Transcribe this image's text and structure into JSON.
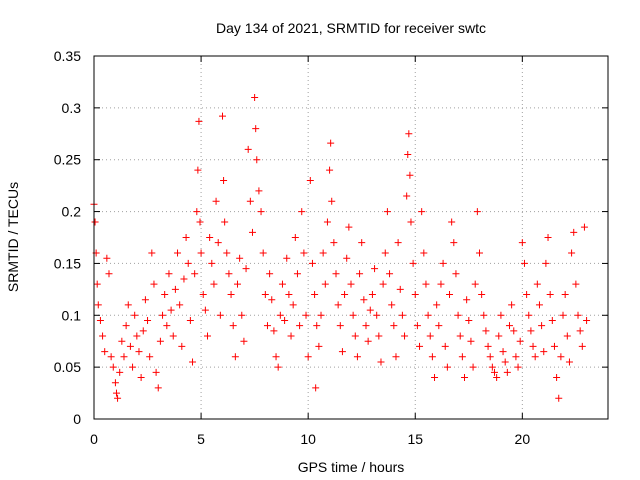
{
  "chart_data": {
    "type": "scatter",
    "title": "Day 134 of 2021, SRMTID for receiver swtc",
    "xlabel": "GPS time / hours",
    "ylabel": "SRMTID / TECUs",
    "xlim": [
      0,
      24
    ],
    "ylim": [
      0,
      0.35
    ],
    "x_ticks": [
      0,
      5,
      10,
      15,
      20
    ],
    "x_tick_labels": [
      "0",
      "5",
      "10",
      "15",
      "20"
    ],
    "y_ticks": [
      0,
      0.05,
      0.1,
      0.15,
      0.2,
      0.25,
      0.3,
      0.35
    ],
    "y_tick_labels": [
      "0",
      "0.05",
      "0.1",
      "0.15",
      "0.2",
      "0.25",
      "0.3",
      "0.35"
    ],
    "grid": true,
    "marker": "+",
    "color": "#ff0000",
    "series": [
      {
        "name": "SRMTID",
        "points": [
          [
            0.0,
            0.207
          ],
          [
            0.05,
            0.19
          ],
          [
            0.1,
            0.16
          ],
          [
            0.15,
            0.13
          ],
          [
            0.2,
            0.11
          ],
          [
            0.3,
            0.095
          ],
          [
            0.4,
            0.08
          ],
          [
            0.5,
            0.065
          ],
          [
            0.6,
            0.155
          ],
          [
            0.7,
            0.14
          ],
          [
            0.8,
            0.06
          ],
          [
            0.9,
            0.05
          ],
          [
            1.0,
            0.035
          ],
          [
            1.05,
            0.025
          ],
          [
            1.1,
            0.02
          ],
          [
            1.2,
            0.045
          ],
          [
            1.3,
            0.075
          ],
          [
            1.4,
            0.06
          ],
          [
            1.5,
            0.09
          ],
          [
            1.6,
            0.11
          ],
          [
            1.7,
            0.07
          ],
          [
            1.8,
            0.05
          ],
          [
            1.9,
            0.1
          ],
          [
            2.0,
            0.08
          ],
          [
            2.1,
            0.065
          ],
          [
            2.2,
            0.04
          ],
          [
            2.3,
            0.085
          ],
          [
            2.4,
            0.115
          ],
          [
            2.5,
            0.095
          ],
          [
            2.6,
            0.06
          ],
          [
            2.7,
            0.16
          ],
          [
            2.8,
            0.13
          ],
          [
            2.9,
            0.045
          ],
          [
            3.0,
            0.03
          ],
          [
            3.1,
            0.075
          ],
          [
            3.2,
            0.1
          ],
          [
            3.3,
            0.12
          ],
          [
            3.4,
            0.09
          ],
          [
            3.5,
            0.14
          ],
          [
            3.6,
            0.105
          ],
          [
            3.7,
            0.08
          ],
          [
            3.8,
            0.125
          ],
          [
            3.9,
            0.16
          ],
          [
            4.0,
            0.11
          ],
          [
            4.1,
            0.07
          ],
          [
            4.2,
            0.135
          ],
          [
            4.3,
            0.175
          ],
          [
            4.4,
            0.15
          ],
          [
            4.5,
            0.095
          ],
          [
            4.6,
            0.055
          ],
          [
            4.7,
            0.14
          ],
          [
            4.8,
            0.2
          ],
          [
            4.85,
            0.24
          ],
          [
            4.9,
            0.287
          ],
          [
            4.95,
            0.19
          ],
          [
            5.0,
            0.16
          ],
          [
            5.1,
            0.12
          ],
          [
            5.2,
            0.105
          ],
          [
            5.3,
            0.08
          ],
          [
            5.4,
            0.175
          ],
          [
            5.5,
            0.15
          ],
          [
            5.6,
            0.13
          ],
          [
            5.7,
            0.21
          ],
          [
            5.8,
            0.17
          ],
          [
            5.9,
            0.1
          ],
          [
            6.0,
            0.292
          ],
          [
            6.05,
            0.23
          ],
          [
            6.1,
            0.19
          ],
          [
            6.2,
            0.16
          ],
          [
            6.3,
            0.14
          ],
          [
            6.4,
            0.12
          ],
          [
            6.5,
            0.09
          ],
          [
            6.6,
            0.06
          ],
          [
            6.7,
            0.13
          ],
          [
            6.8,
            0.155
          ],
          [
            6.9,
            0.1
          ],
          [
            7.0,
            0.075
          ],
          [
            7.1,
            0.145
          ],
          [
            7.2,
            0.26
          ],
          [
            7.3,
            0.21
          ],
          [
            7.4,
            0.18
          ],
          [
            7.5,
            0.31
          ],
          [
            7.55,
            0.28
          ],
          [
            7.6,
            0.25
          ],
          [
            7.7,
            0.22
          ],
          [
            7.8,
            0.2
          ],
          [
            7.9,
            0.16
          ],
          [
            8.0,
            0.12
          ],
          [
            8.1,
            0.09
          ],
          [
            8.2,
            0.14
          ],
          [
            8.3,
            0.115
          ],
          [
            8.4,
            0.085
          ],
          [
            8.5,
            0.06
          ],
          [
            8.6,
            0.05
          ],
          [
            8.7,
            0.1
          ],
          [
            8.8,
            0.13
          ],
          [
            8.9,
            0.095
          ],
          [
            9.0,
            0.155
          ],
          [
            9.1,
            0.12
          ],
          [
            9.2,
            0.08
          ],
          [
            9.3,
            0.11
          ],
          [
            9.4,
            0.175
          ],
          [
            9.5,
            0.14
          ],
          [
            9.6,
            0.09
          ],
          [
            9.7,
            0.2
          ],
          [
            9.8,
            0.16
          ],
          [
            9.9,
            0.1
          ],
          [
            10.0,
            0.06
          ],
          [
            10.1,
            0.23
          ],
          [
            10.2,
            0.15
          ],
          [
            10.3,
            0.12
          ],
          [
            10.35,
            0.03
          ],
          [
            10.4,
            0.09
          ],
          [
            10.5,
            0.07
          ],
          [
            10.6,
            0.1
          ],
          [
            10.7,
            0.16
          ],
          [
            10.8,
            0.13
          ],
          [
            10.9,
            0.19
          ],
          [
            11.0,
            0.24
          ],
          [
            11.05,
            0.266
          ],
          [
            11.1,
            0.21
          ],
          [
            11.2,
            0.17
          ],
          [
            11.3,
            0.14
          ],
          [
            11.4,
            0.11
          ],
          [
            11.5,
            0.09
          ],
          [
            11.6,
            0.065
          ],
          [
            11.7,
            0.12
          ],
          [
            11.8,
            0.155
          ],
          [
            11.9,
            0.185
          ],
          [
            12.0,
            0.13
          ],
          [
            12.1,
            0.1
          ],
          [
            12.2,
            0.08
          ],
          [
            12.3,
            0.06
          ],
          [
            12.4,
            0.14
          ],
          [
            12.5,
            0.17
          ],
          [
            12.6,
            0.115
          ],
          [
            12.7,
            0.09
          ],
          [
            12.8,
            0.075
          ],
          [
            12.9,
            0.105
          ],
          [
            13.0,
            0.12
          ],
          [
            13.1,
            0.145
          ],
          [
            13.2,
            0.1
          ],
          [
            13.3,
            0.08
          ],
          [
            13.4,
            0.055
          ],
          [
            13.5,
            0.13
          ],
          [
            13.6,
            0.16
          ],
          [
            13.7,
            0.2
          ],
          [
            13.8,
            0.14
          ],
          [
            13.9,
            0.11
          ],
          [
            14.0,
            0.09
          ],
          [
            14.1,
            0.06
          ],
          [
            14.2,
            0.17
          ],
          [
            14.3,
            0.125
          ],
          [
            14.4,
            0.1
          ],
          [
            14.5,
            0.08
          ],
          [
            14.6,
            0.215
          ],
          [
            14.65,
            0.255
          ],
          [
            14.7,
            0.275
          ],
          [
            14.75,
            0.235
          ],
          [
            14.8,
            0.19
          ],
          [
            14.9,
            0.15
          ],
          [
            15.0,
            0.12
          ],
          [
            15.1,
            0.09
          ],
          [
            15.2,
            0.07
          ],
          [
            15.3,
            0.2
          ],
          [
            15.4,
            0.16
          ],
          [
            15.5,
            0.13
          ],
          [
            15.6,
            0.1
          ],
          [
            15.7,
            0.08
          ],
          [
            15.8,
            0.06
          ],
          [
            15.9,
            0.04
          ],
          [
            16.0,
            0.11
          ],
          [
            16.1,
            0.09
          ],
          [
            16.2,
            0.13
          ],
          [
            16.3,
            0.15
          ],
          [
            16.4,
            0.07
          ],
          [
            16.5,
            0.05
          ],
          [
            16.6,
            0.12
          ],
          [
            16.7,
            0.19
          ],
          [
            16.8,
            0.17
          ],
          [
            16.9,
            0.14
          ],
          [
            17.0,
            0.1
          ],
          [
            17.1,
            0.08
          ],
          [
            17.2,
            0.06
          ],
          [
            17.3,
            0.04
          ],
          [
            17.4,
            0.115
          ],
          [
            17.5,
            0.095
          ],
          [
            17.6,
            0.075
          ],
          [
            17.7,
            0.05
          ],
          [
            17.8,
            0.13
          ],
          [
            17.9,
            0.2
          ],
          [
            18.0,
            0.16
          ],
          [
            18.1,
            0.12
          ],
          [
            18.2,
            0.1
          ],
          [
            18.3,
            0.085
          ],
          [
            18.4,
            0.07
          ],
          [
            18.5,
            0.06
          ],
          [
            18.6,
            0.05
          ],
          [
            18.7,
            0.045
          ],
          [
            18.8,
            0.04
          ],
          [
            18.9,
            0.08
          ],
          [
            19.0,
            0.1
          ],
          [
            19.1,
            0.065
          ],
          [
            19.2,
            0.055
          ],
          [
            19.3,
            0.045
          ],
          [
            19.4,
            0.09
          ],
          [
            19.5,
            0.11
          ],
          [
            19.6,
            0.085
          ],
          [
            19.7,
            0.06
          ],
          [
            19.8,
            0.05
          ],
          [
            19.9,
            0.075
          ],
          [
            20.0,
            0.17
          ],
          [
            20.1,
            0.15
          ],
          [
            20.2,
            0.12
          ],
          [
            20.3,
            0.1
          ],
          [
            20.4,
            0.085
          ],
          [
            20.5,
            0.07
          ],
          [
            20.6,
            0.06
          ],
          [
            20.7,
            0.13
          ],
          [
            20.8,
            0.11
          ],
          [
            20.9,
            0.09
          ],
          [
            21.0,
            0.065
          ],
          [
            21.1,
            0.15
          ],
          [
            21.2,
            0.175
          ],
          [
            21.3,
            0.12
          ],
          [
            21.4,
            0.095
          ],
          [
            21.5,
            0.07
          ],
          [
            21.6,
            0.04
          ],
          [
            21.7,
            0.02
          ],
          [
            21.8,
            0.06
          ],
          [
            21.9,
            0.1
          ],
          [
            22.0,
            0.12
          ],
          [
            22.1,
            0.08
          ],
          [
            22.2,
            0.055
          ],
          [
            22.3,
            0.16
          ],
          [
            22.4,
            0.18
          ],
          [
            22.5,
            0.13
          ],
          [
            22.6,
            0.1
          ],
          [
            22.7,
            0.085
          ],
          [
            22.8,
            0.07
          ],
          [
            22.9,
            0.185
          ],
          [
            23.0,
            0.095
          ]
        ]
      }
    ]
  }
}
